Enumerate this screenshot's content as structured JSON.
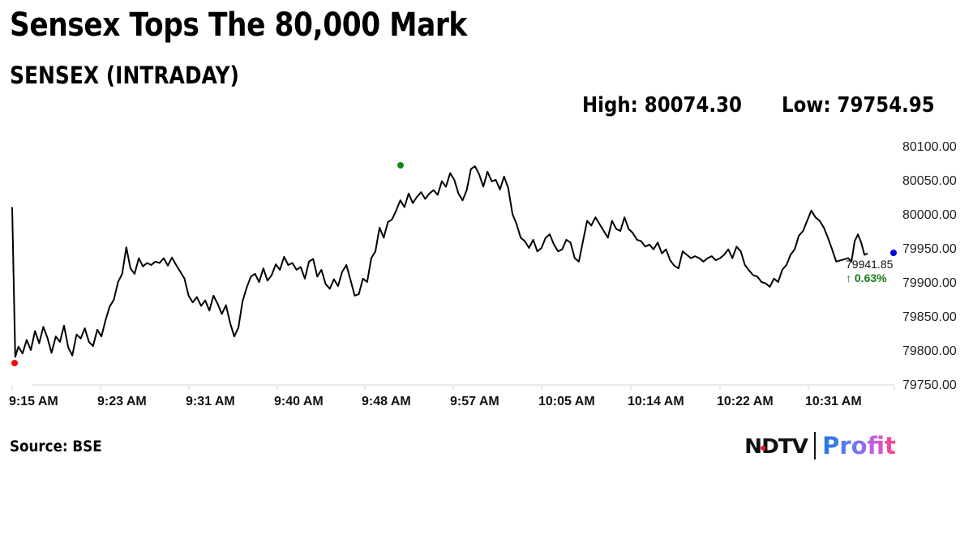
{
  "header": {
    "headline": "Sensex Tops The 80,000 Mark",
    "subtitle": "SENSEX (INTRADAY)"
  },
  "stats": {
    "high_label": "High: 80074.30",
    "low_label": "Low: 79754.95",
    "high": 80074.3,
    "low": 79754.95
  },
  "last_value": {
    "value_label": "79941.85",
    "change_label": "↑ 0.63%",
    "change_color": "#1a7a1a"
  },
  "markers": {
    "low_color": "#ff0000",
    "high_color": "#118811",
    "last_color": "#0000dd"
  },
  "footer": {
    "source": "Source: BSE"
  },
  "logo": {
    "ndtv": "NDTV",
    "profit": "Profit"
  },
  "chart_data": {
    "type": "line",
    "title": "SENSEX (INTRADAY)",
    "xlabel": "",
    "ylabel": "",
    "ylim": [
      79750,
      80100
    ],
    "y_ticks": [
      "80100.00",
      "80050.00",
      "80000.00",
      "79950.00",
      "79900.00",
      "79850.00",
      "79800.00",
      "79750.00"
    ],
    "x_ticks": [
      "9:15 AM",
      "9:23 AM",
      "9:31 AM",
      "9:40 AM",
      "9:48 AM",
      "9:57 AM",
      "10:05 AM",
      "10:14 AM",
      "10:22 AM",
      "10:31 AM"
    ],
    "grid": false,
    "legend": "none",
    "series": [
      {
        "name": "SENSEX",
        "note": "x = minutes after 9:15 AM (approx.), y = index level (approx., read from pixels)",
        "x": [
          0,
          0.3,
          0.6,
          1,
          1.4,
          1.8,
          2.2,
          2.6,
          3.0,
          3.4,
          3.8,
          4.2,
          4.6,
          5.0,
          5.4,
          5.8,
          6.2,
          6.6,
          7.0,
          7.4,
          7.8,
          8.2,
          8.6,
          9.0,
          9.4,
          9.8,
          10.2,
          10.6,
          11.0,
          11.4,
          11.8,
          12.2,
          12.6,
          13.0,
          13.4,
          13.8,
          14.2,
          14.6,
          15.0,
          15.4,
          15.8,
          16.2,
          16.6,
          17.0,
          17.4,
          17.8,
          18.2,
          18.6,
          19.0,
          19.4,
          19.8,
          20.2,
          20.6,
          21.0,
          21.4,
          21.8,
          22.2,
          22.6,
          23.0,
          23.4,
          23.8,
          24.2,
          24.6,
          25.0,
          25.4,
          25.8,
          26.2,
          26.6,
          27.0,
          27.4,
          27.8,
          28.2,
          28.6,
          29.0,
          29.4,
          29.8,
          30.2,
          30.6,
          31.0,
          31.4,
          31.8,
          32.2,
          32.6,
          33.0,
          33.4,
          33.8,
          34.2,
          34.6,
          35.0,
          35.4,
          35.8,
          36.2,
          36.6,
          37.0,
          37.4,
          37.8,
          38.2,
          38.6,
          39.0,
          39.4,
          39.8,
          40.2,
          40.6,
          41.0,
          41.4,
          41.8,
          42.2,
          42.6,
          43.0,
          43.4,
          43.8,
          44.2,
          44.6,
          45.0,
          45.4,
          45.8,
          46.2,
          46.6,
          47.0,
          47.4,
          47.8,
          48.2,
          48.6,
          49.0,
          49.4,
          49.8,
          50.2,
          50.6,
          51.0,
          51.4,
          51.8,
          52.2,
          52.6,
          53.0,
          53.4,
          53.8,
          54.2,
          54.6,
          55.0,
          55.4,
          55.8,
          56.2,
          56.6,
          57.0,
          57.4,
          57.8,
          58.2,
          58.6,
          59.0,
          59.4,
          59.8,
          60.2,
          60.6,
          61.0,
          61.4,
          61.8,
          62.2,
          62.6,
          63.0,
          63.4,
          63.8,
          64.2,
          64.6,
          65.0,
          65.4,
          65.8,
          66.2,
          66.6,
          67.0,
          67.4,
          67.8,
          68.2,
          68.6,
          69.0,
          69.4,
          69.8,
          70.2,
          70.6,
          71.0,
          71.4,
          71.8,
          72.2,
          72.6,
          73.0,
          73.4,
          73.8,
          74.2,
          74.6,
          75.0,
          75.4,
          75.8,
          76.2,
          76.6,
          77.0,
          77.4,
          77.8,
          78.2,
          78.6,
          79.0,
          79.4,
          79.8,
          80.2,
          80.6,
          81.0,
          81.4,
          81.8,
          82.2
        ],
        "values": [
          80010,
          79790,
          79805,
          79795,
          79815,
          79800,
          79828,
          79810,
          79834,
          79818,
          79796,
          79820,
          79812,
          79836,
          79804,
          79792,
          79823,
          79817,
          79832,
          79812,
          79806,
          79830,
          79820,
          79844,
          79864,
          79874,
          79900,
          79912,
          79951,
          79920,
          79912,
          79935,
          79923,
          79928,
          79925,
          79930,
          79928,
          79935,
          79924,
          79936,
          79925,
          79915,
          79905,
          79880,
          79870,
          79878,
          79865,
          79873,
          79858,
          79880,
          79868,
          79853,
          79866,
          79840,
          79820,
          79833,
          79872,
          79892,
          79908,
          79912,
          79900,
          79920,
          79902,
          79910,
          79926,
          79918,
          79937,
          79925,
          79928,
          79918,
          79922,
          79905,
          79930,
          79934,
          79908,
          79918,
          79897,
          79890,
          79904,
          79894,
          79915,
          79925,
          79903,
          79880,
          79882,
          79905,
          79900,
          79935,
          79945,
          79980,
          79965,
          79988,
          79992,
          80005,
          80020,
          80010,
          80030,
          80016,
          80025,
          80032,
          80022,
          80030,
          80035,
          80028,
          80048,
          80040,
          80060,
          80050,
          80030,
          80020,
          80035,
          80066,
          80070,
          80058,
          80040,
          80062,
          80048,
          80050,
          80036,
          80055,
          80038,
          80000,
          79985,
          79965,
          79960,
          79950,
          79962,
          79945,
          79950,
          79965,
          79970,
          79955,
          79945,
          79948,
          79962,
          79958,
          79935,
          79930,
          79960,
          79990,
          79983,
          79995,
          79985,
          79975,
          79965,
          79990,
          79978,
          79975,
          79995,
          79978,
          79972,
          79962,
          79960,
          79952,
          79955,
          79948,
          79958,
          79942,
          79948,
          79932,
          79924,
          79920,
          79945,
          79940,
          79935,
          79938,
          79935,
          79930,
          79935,
          79938,
          79932,
          79935,
          79940,
          79948,
          79935,
          79952,
          79945,
          79925,
          79917,
          79910,
          79908,
          79900,
          79898,
          79893,
          79905,
          79900,
          79918,
          79925,
          79940,
          79948,
          79968,
          79975,
          79990,
          80005,
          79995,
          79990,
          79980,
          79965,
          79948,
          79930,
          79935,
          79930,
          79960,
          79970,
          79958,
          79940,
          79942
        ]
      }
    ],
    "annotations": [
      {
        "type": "marker",
        "label": "intraday low",
        "value": 79781,
        "color": "red"
      },
      {
        "type": "marker",
        "label": "intraday high",
        "value": 80074.3,
        "color": "green"
      },
      {
        "type": "marker",
        "label": "last",
        "value": 79941.85,
        "color": "blue"
      },
      {
        "type": "text",
        "text": "79941.85"
      },
      {
        "type": "text",
        "text": "↑ 0.63%"
      }
    ]
  }
}
